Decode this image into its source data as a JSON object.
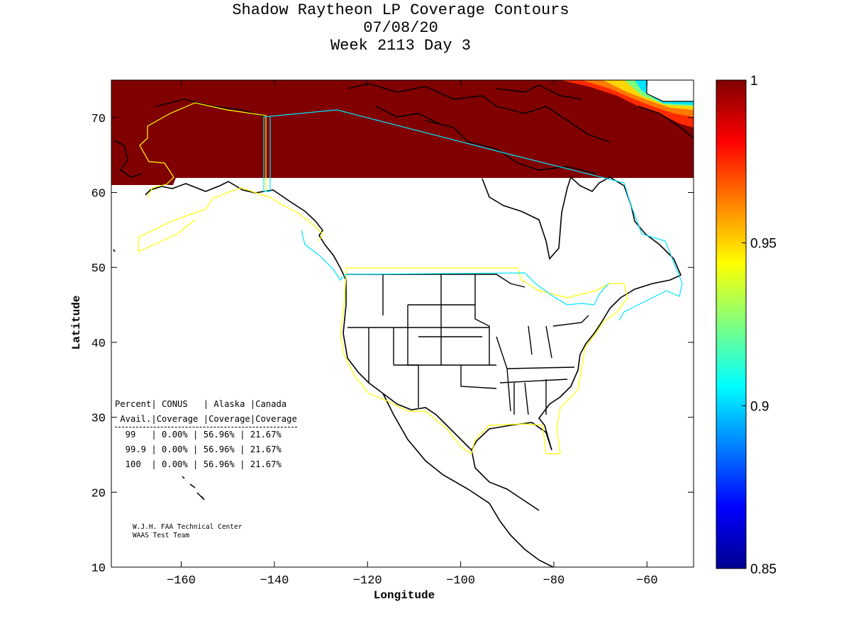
{
  "title": {
    "line1": "Shadow Raytheon LP Coverage Contours",
    "line2": "07/08/20",
    "line3": "Week 2113 Day 3"
  },
  "chart_data": {
    "type": "heatmap",
    "xlabel": "Longitude",
    "ylabel": "Latitude",
    "xlim": [
      -175,
      -50
    ],
    "ylim": [
      10,
      75
    ],
    "xticks": [
      -160,
      -140,
      -120,
      -100,
      -80,
      -60
    ],
    "yticks": [
      10,
      20,
      30,
      40,
      50,
      60,
      70
    ],
    "colorbar": {
      "range": [
        0.85,
        1
      ],
      "ticks": [
        0.85,
        0.9,
        0.95,
        1
      ],
      "tick_labels": [
        "0.85",
        "0.9",
        "0.95",
        "1"
      ],
      "colormap": "jet"
    },
    "coverage_region": {
      "value": 1,
      "lat_min_west": 61,
      "lat_min_east": 62,
      "lat_max": 75,
      "lon_min": -175,
      "lon_max": -50
    },
    "gradient_region_note_values": [
      1,
      0.98,
      0.96,
      0.94,
      0.92,
      0.9
    ]
  },
  "stats_table": {
    "header1": "Percent| CONUS   | Alaska |Canada",
    "header2": " Avail.|Coverage |Coverage|Coverage",
    "rows": [
      "  99   | 0.00% | 56.96% | 21.67%",
      "  99.9 | 0.00% | 56.96% | 21.67%",
      "  100  | 0.00% | 56.96% | 21.67%"
    ]
  },
  "credit": {
    "line1": "W.J.H. FAA Technical Center",
    "line2": "WAAS Test Team"
  },
  "colors": {
    "coverage": "#800000",
    "alaska_boundary": "#ffff00",
    "canada_boundary": "#00e5ff",
    "coastline": "#000000"
  }
}
